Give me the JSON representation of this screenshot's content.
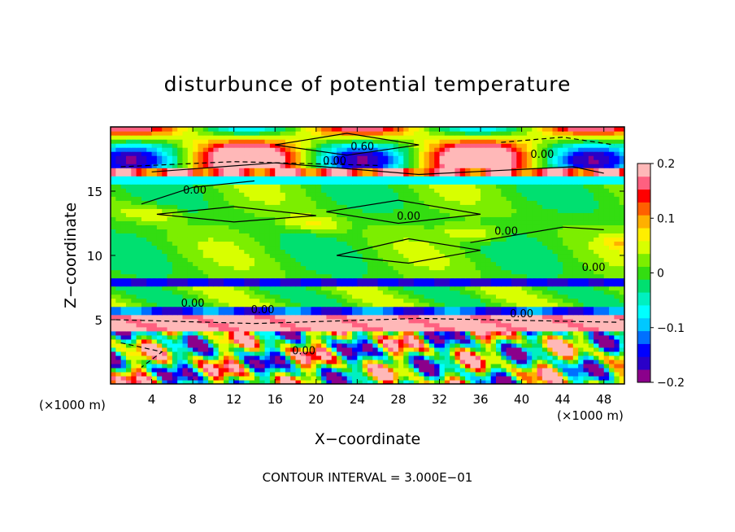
{
  "chart_data": {
    "type": "heatmap",
    "title": "disturbunce of potential temperature",
    "xlabel": "X−coordinate",
    "ylabel": "Z−coordinate",
    "x_unit": "(×1000 m)",
    "z_unit": "(×1000 m)",
    "xlim": [
      0,
      50
    ],
    "ylim": [
      0,
      20
    ],
    "x_ticks": [
      "4",
      "8",
      "12",
      "16",
      "20",
      "24",
      "28",
      "32",
      "36",
      "40",
      "44",
      "48"
    ],
    "y_ticks": [
      "5",
      "10",
      "15"
    ],
    "colorbar": {
      "range": [
        -0.2,
        0.2
      ],
      "tick_labels": [
        "0.2",
        "0.1",
        "0",
        "−0.1",
        "−0.2"
      ]
    },
    "contour_labels": [
      "0.60",
      "0.00",
      "0.00",
      "0.00",
      "0.00",
      "0.00",
      "0.00",
      "0.00",
      "0.00",
      "0.00",
      "0.00"
    ],
    "contour_interval_text": "CONTOUR INTERVAL = 3.000E−01"
  },
  "colors": {
    "colormap": [
      "#8b008b",
      "#2a00c8",
      "#0000ff",
      "#0070ff",
      "#00c8ff",
      "#00ffff",
      "#00f0c0",
      "#00e070",
      "#33dd11",
      "#7cee00",
      "#d8ff00",
      "#ffee00",
      "#ffb000",
      "#ff6000",
      "#ff0000",
      "#ff6080",
      "#ffb8b8"
    ]
  }
}
